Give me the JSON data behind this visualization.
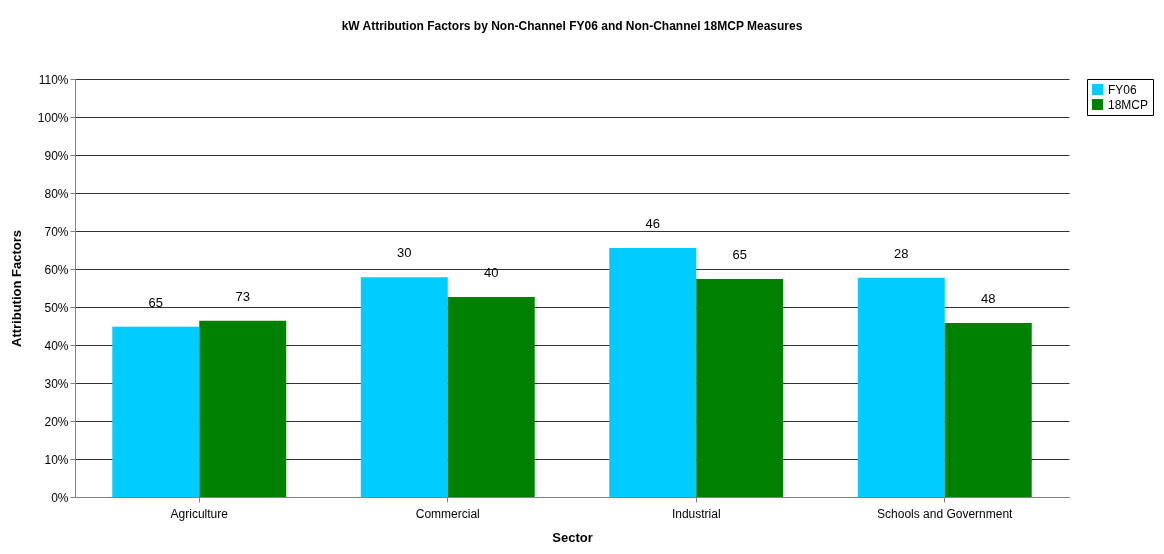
{
  "chart_data": {
    "type": "bar",
    "title": "kW Attribution Factors by Non-Channel FY06  and Non-Channel 18MCP Measures",
    "xlabel": "Sector",
    "ylabel": "Attribution Factors",
    "categories": [
      "Agriculture",
      "Commercial",
      "Industrial",
      "Schools and Government"
    ],
    "series": [
      {
        "name": "FY06",
        "color": "#00ccff",
        "values": [
          44.8,
          57.8,
          65.5,
          57.7
        ]
      },
      {
        "name": "18MCP",
        "color": "#008000",
        "values": [
          46.4,
          52.6,
          57.4,
          45.8
        ]
      }
    ],
    "annotations": [
      "65",
      "73",
      "30",
      "40",
      "46",
      "65",
      "28",
      "48"
    ],
    "ylim": [
      0,
      110
    ],
    "yticks": [
      {
        "value": 0,
        "label": "0%"
      },
      {
        "value": 10,
        "label": "10%"
      },
      {
        "value": 20,
        "label": "20%"
      },
      {
        "value": 30,
        "label": "30%"
      },
      {
        "value": 40,
        "label": "40%"
      },
      {
        "value": 50,
        "label": "50%"
      },
      {
        "value": 60,
        "label": "60%"
      },
      {
        "value": 70,
        "label": "70%"
      },
      {
        "value": 80,
        "label": "80%"
      },
      {
        "value": 90,
        "label": "90%"
      },
      {
        "value": 100,
        "label": "100%"
      },
      {
        "value": 110,
        "label": "110%"
      }
    ],
    "grid": "y",
    "legend": "right"
  }
}
